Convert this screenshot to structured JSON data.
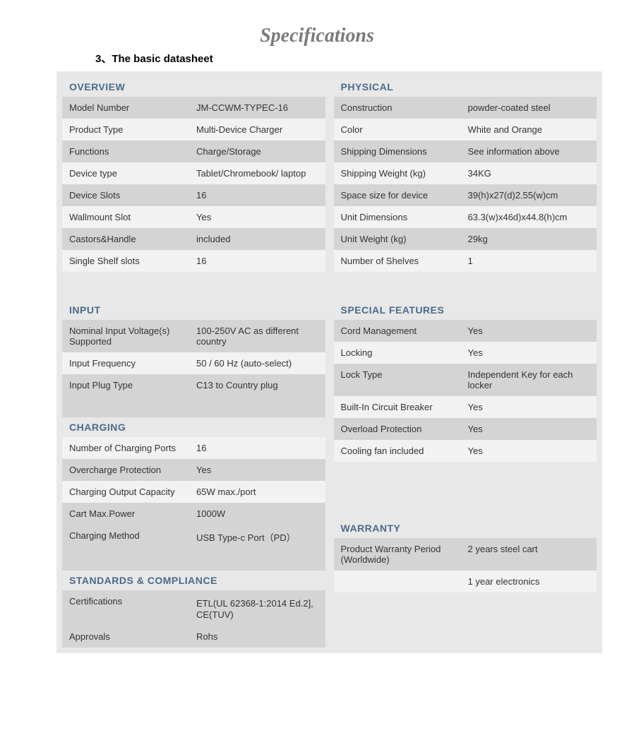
{
  "title": "Specifications",
  "section_number": "3、The basic datasheet",
  "left": {
    "overview": {
      "header": "OVERVIEW",
      "rows": [
        {
          "label": "Model Number",
          "value": "JM-CCWM-TYPEC-16"
        },
        {
          "label": "Product Type",
          "value": "Multi-Device Charger"
        },
        {
          "label": "Functions",
          "value": "Charge/Storage"
        },
        {
          "label": "Device type",
          "value": "Tablet/Chromebook/ laptop"
        },
        {
          "label": "Device Slots",
          "value": "16"
        },
        {
          "label": "Wallmount Slot",
          "value": "Yes"
        },
        {
          "label": "Castors&Handle",
          "value": "included"
        },
        {
          "label": "Single Shelf slots",
          "value": "16"
        }
      ]
    },
    "input": {
      "header": "INPUT",
      "rows": [
        {
          "label": "Nominal Input Voltage(s) Supported",
          "value": "100-250V AC as different country"
        },
        {
          "label": "Input Frequency",
          "value": "50 / 60 Hz (auto-select)"
        },
        {
          "label": "Input Plug Type",
          "value": "C13 to Country plug"
        },
        {
          "label": "",
          "value": ""
        }
      ]
    },
    "charging": {
      "header": "CHARGING",
      "rows": [
        {
          "label": "Number of Charging Ports",
          "value": "16"
        },
        {
          "label": "Overcharge Protection",
          "value": "Yes"
        },
        {
          "label": "Charging Output Capacity",
          "value": "65W max./port"
        },
        {
          "label": "Cart Max.Power",
          "value": "1000W"
        },
        {
          "label": "Charging Method",
          "value": "USB Type-c Port（PD）"
        },
        {
          "label": "",
          "value": ""
        }
      ]
    },
    "standards": {
      "header": "STANDARDS & COMPLIANCE",
      "rows": [
        {
          "label": "Certifications",
          "value": "ETL(UL 62368-1:2014 Ed.2],　CE(TUV)"
        },
        {
          "label": "Approvals",
          "value": "Rohs"
        }
      ]
    }
  },
  "right": {
    "physical": {
      "header": "PHYSICAL",
      "rows": [
        {
          "label": "Construction",
          "value": "powder-coated steel"
        },
        {
          "label": "Color",
          "value": "White and Orange"
        },
        {
          "label": "Shipping Dimensions",
          "value": "See information above"
        },
        {
          "label": "Shipping Weight (kg)",
          "value": "34KG"
        },
        {
          "label": "Space size for device",
          "value": "39(h)x27(d)2.55(w)cm"
        },
        {
          "label": "Unit Dimensions",
          "value": "63.3(w)x46d)x44.8(h)cm"
        },
        {
          "label": "Unit Weight (kg)",
          "value": "29kg"
        },
        {
          "label": "Number of Shelves",
          "value": "1"
        }
      ]
    },
    "special": {
      "header": "SPECIAL FEATURES",
      "rows": [
        {
          "label": "Cord Management",
          "value": "Yes"
        },
        {
          "label": "Locking",
          "value": "Yes"
        },
        {
          "label": "Lock Type",
          "value": "Independent Key for each locker"
        },
        {
          "label": "Built-In Circuit Breaker",
          "value": "Yes"
        },
        {
          "label": "Overload Protection",
          "value": "Yes"
        },
        {
          "label": "Cooling fan included",
          "value": "Yes"
        }
      ]
    },
    "warranty": {
      "header": "WARRANTY",
      "rows": [
        {
          "label": "Product Warranty Period (Worldwide)",
          "value": "2 years steel cart"
        },
        {
          "label": "",
          "value": "1 year electronics"
        }
      ]
    }
  },
  "colors": {
    "page_bg": "#ffffff",
    "container_bg": "#e8e8e8",
    "row_shaded": "#d4d4d4",
    "row_light": "#f2f2f2",
    "header_color": "#4a6a8a",
    "text_color": "#333333",
    "title_color": "#7a7a7a"
  }
}
